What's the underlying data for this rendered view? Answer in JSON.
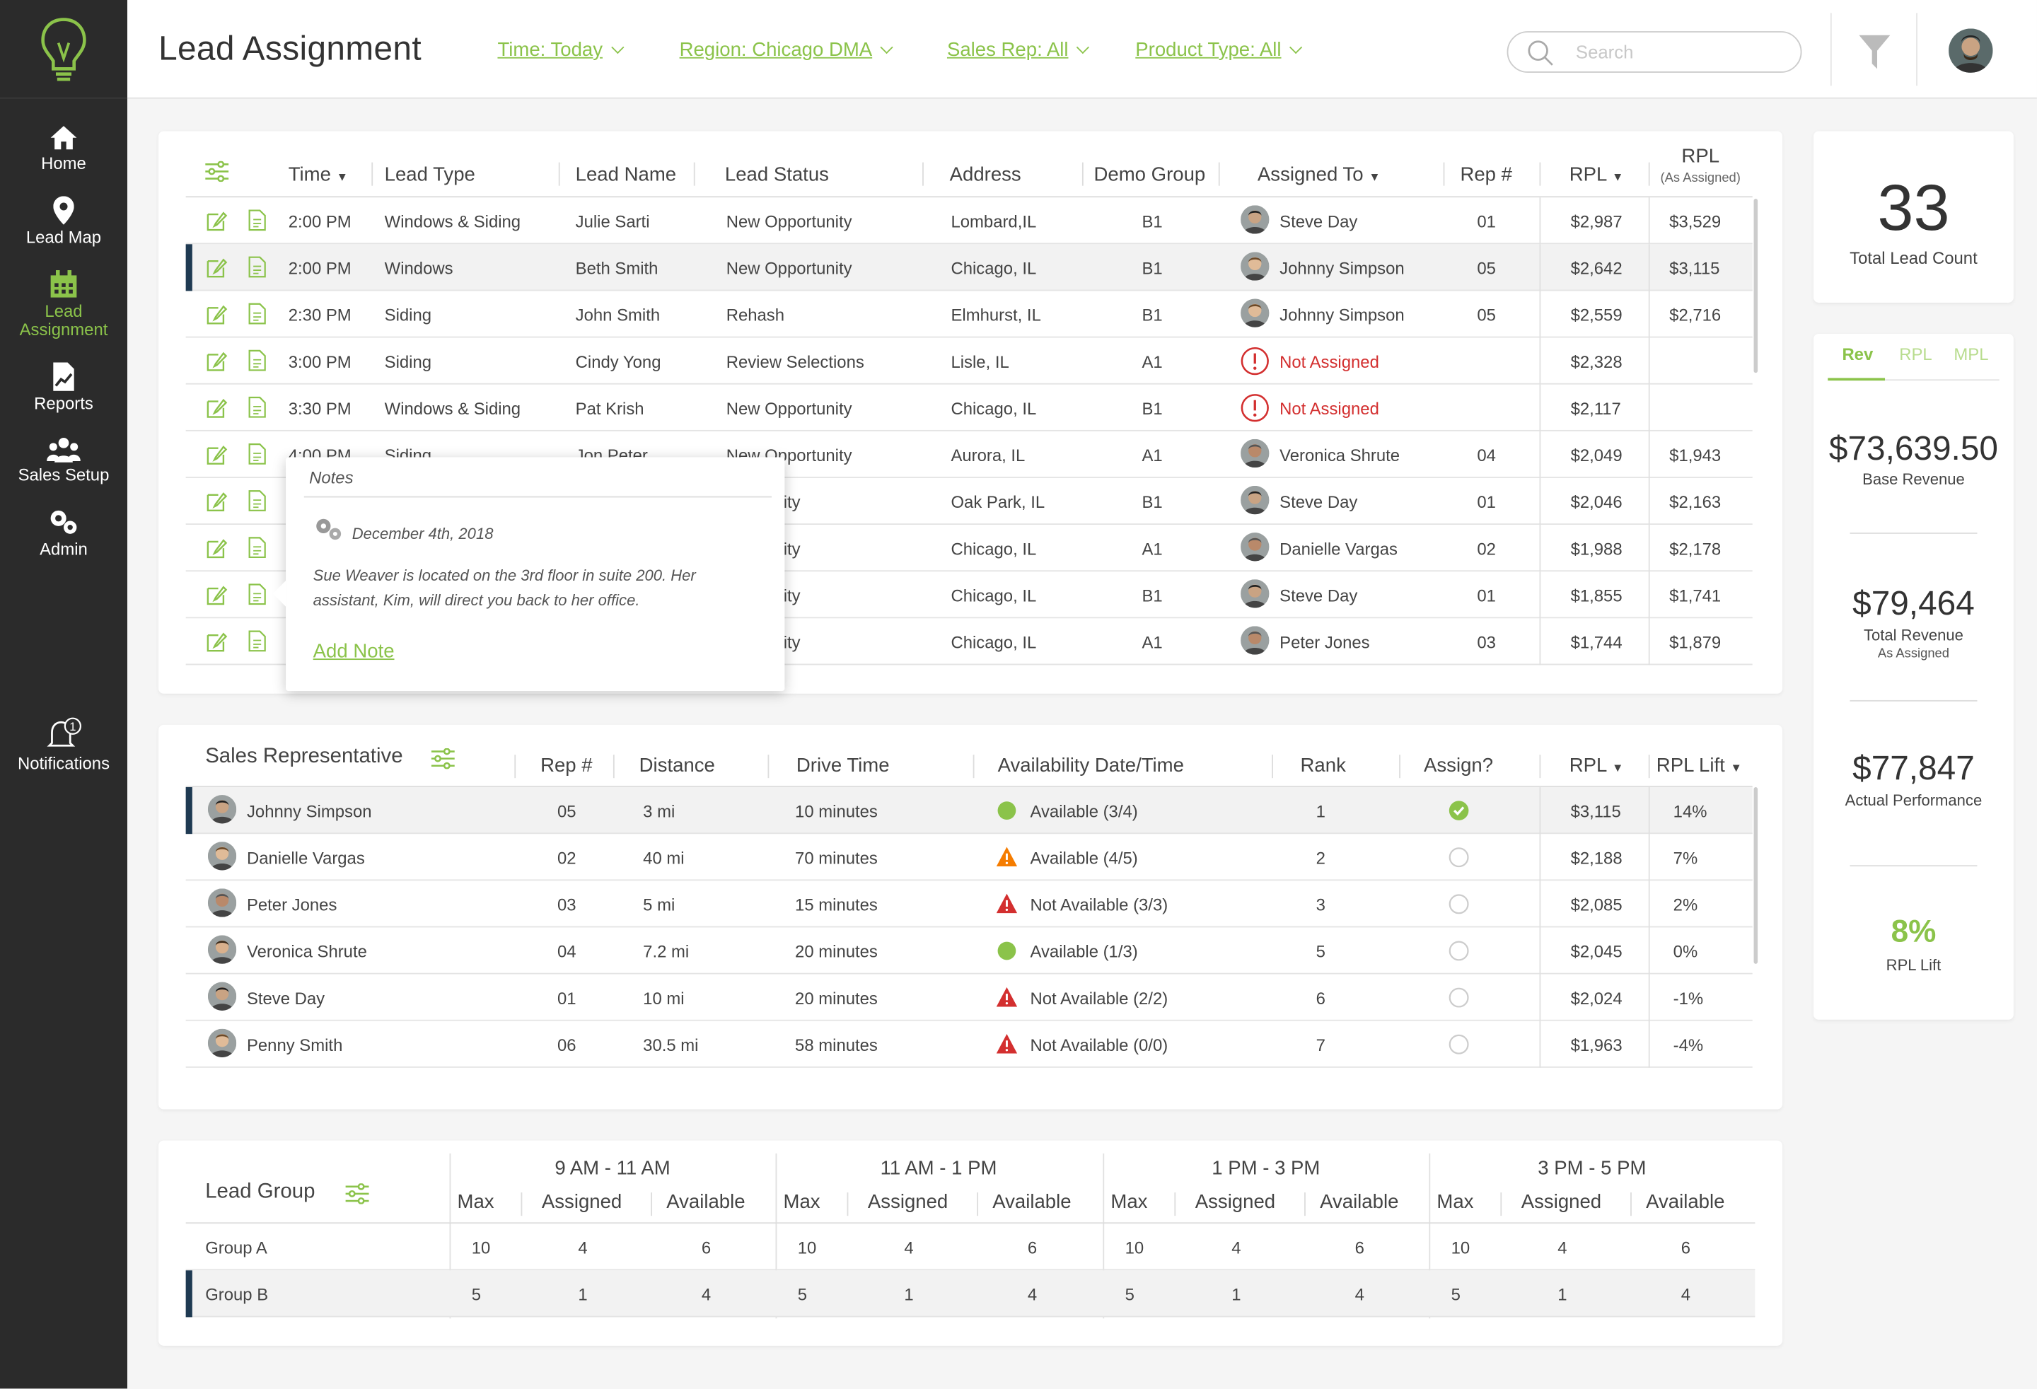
{
  "sidebar": {
    "items": [
      {
        "label": "Home",
        "icon": "home-icon"
      },
      {
        "label": "Lead Map",
        "icon": "map-pin-icon"
      },
      {
        "label": "Lead Assignment",
        "icon": "calendar-icon"
      },
      {
        "label": "Reports",
        "icon": "reports-icon"
      },
      {
        "label": "Sales Setup",
        "icon": "people-icon"
      },
      {
        "label": "Admin",
        "icon": "gears-icon"
      },
      {
        "label": "Notifications",
        "icon": "bell-icon",
        "badge": "1"
      }
    ],
    "active": "Lead Assignment"
  },
  "header": {
    "title": "Lead Assignment",
    "filters": [
      "Time: Today",
      "Region: Chicago DMA",
      "Sales Rep: All",
      "Product Type: All"
    ],
    "search_placeholder": "Search"
  },
  "leads": {
    "columns": [
      "Time",
      "Lead Type",
      "Lead Name",
      "Lead Status",
      "Address",
      "Demo Group",
      "Assigned To",
      "Rep #",
      "RPL",
      "RPL",
      "(As Assigned)"
    ],
    "rows": [
      {
        "time": "2:00 PM",
        "type": "Windows & Siding",
        "name": "Julie Sarti",
        "status": "New Opportunity",
        "address": "Lombard,IL",
        "group": "B1",
        "assigned": "Steve Day",
        "rep": "01",
        "rpl": "$2,987",
        "rpl_as": "$3,529"
      },
      {
        "time": "2:00 PM",
        "type": "Windows",
        "name": "Beth Smith",
        "status": "New Opportunity",
        "address": "Chicago, IL",
        "group": "B1",
        "assigned": "Johnny Simpson",
        "rep": "05",
        "rpl": "$2,642",
        "rpl_as": "$3,115"
      },
      {
        "time": "2:30 PM",
        "type": "Siding",
        "name": "John Smith",
        "status": "Rehash",
        "address": "Elmhurst, IL",
        "group": "B1",
        "assigned": "Johnny Simpson",
        "rep": "05",
        "rpl": "$2,559",
        "rpl_as": "$2,716"
      },
      {
        "time": "3:00 PM",
        "type": "Siding",
        "name": "Cindy Yong",
        "status": "Review Selections",
        "address": "Lisle, IL",
        "group": "A1",
        "assigned": "Not Assigned",
        "rep": "",
        "rpl": "$2,328",
        "rpl_as": ""
      },
      {
        "time": "3:30 PM",
        "type": "Windows & Siding",
        "name": "Pat Krish",
        "status": "New Opportunity",
        "address": "Chicago, IL",
        "group": "B1",
        "assigned": "Not Assigned",
        "rep": "",
        "rpl": "$2,117",
        "rpl_as": ""
      },
      {
        "time": "4:00 PM",
        "type": "Siding",
        "name": "Jon Peter",
        "status": "New Opportunity",
        "address": "Aurora, IL",
        "group": "A1",
        "assigned": "Veronica Shrute",
        "rep": "04",
        "rpl": "$2,049",
        "rpl_as": "$1,943"
      },
      {
        "time": "",
        "type": "",
        "name": "",
        "status": "pportunity",
        "address": "Oak Park, IL",
        "group": "B1",
        "assigned": "Steve Day",
        "rep": "01",
        "rpl": "$2,046",
        "rpl_as": "$2,163"
      },
      {
        "time": "",
        "type": "",
        "name": "",
        "status": "pportunity",
        "address": "Chicago, IL",
        "group": "A1",
        "assigned": "Danielle Vargas",
        "rep": "02",
        "rpl": "$1,988",
        "rpl_as": "$2,178"
      },
      {
        "time": "",
        "type": "",
        "name": "",
        "status": "pportunity",
        "address": "Chicago, IL",
        "group": "B1",
        "assigned": "Steve Day",
        "rep": "01",
        "rpl": "$1,855",
        "rpl_as": "$1,741"
      },
      {
        "time": "",
        "type": "",
        "name": "",
        "status": "pportunity",
        "address": "Chicago, IL",
        "group": "A1",
        "assigned": "Peter Jones",
        "rep": "03",
        "rpl": "$1,744",
        "rpl_as": "$1,879"
      }
    ]
  },
  "notes": {
    "title": "Notes",
    "date": "December 4th, 2018",
    "text": "Sue Weaver is located on the 3rd floor in suite 200. Her assistant, Kim, will direct you back to her office.",
    "add_label": "Add Note"
  },
  "reps": {
    "title": "Sales Representative",
    "columns": [
      "Rep #",
      "Distance",
      "Drive Time",
      "Availability Date/Time",
      "Rank",
      "Assign?",
      "RPL",
      "RPL Lift"
    ],
    "rows": [
      {
        "name": "Johnny Simpson",
        "rep": "05",
        "distance": "3 mi",
        "drive": "10 minutes",
        "avail_status": "green",
        "avail": "Available (3/4)",
        "rank": "1",
        "assigned": true,
        "rpl": "$3,115",
        "lift": "14%"
      },
      {
        "name": "Danielle Vargas",
        "rep": "02",
        "distance": "40 mi",
        "drive": "70 minutes",
        "avail_status": "orange",
        "avail": "Available (4/5)",
        "rank": "2",
        "assigned": false,
        "rpl": "$2,188",
        "lift": "7%"
      },
      {
        "name": "Peter Jones",
        "rep": "03",
        "distance": "5 mi",
        "drive": "15 minutes",
        "avail_status": "red",
        "avail": "Not Available (3/3)",
        "rank": "3",
        "assigned": false,
        "rpl": "$2,085",
        "lift": "2%"
      },
      {
        "name": "Veronica Shrute",
        "rep": "04",
        "distance": "7.2 mi",
        "drive": "20 minutes",
        "avail_status": "green",
        "avail": "Available (1/3)",
        "rank": "5",
        "assigned": false,
        "rpl": "$2,045",
        "lift": "0%"
      },
      {
        "name": "Steve Day",
        "rep": "01",
        "distance": "10 mi",
        "drive": "20 minutes",
        "avail_status": "red",
        "avail": "Not Available (2/2)",
        "rank": "6",
        "assigned": false,
        "rpl": "$2,024",
        "lift": "-1%"
      },
      {
        "name": "Penny Smith",
        "rep": "06",
        "distance": "30.5 mi",
        "drive": "58 minutes",
        "avail_status": "red",
        "avail": "Not Available (0/0)",
        "rank": "7",
        "assigned": false,
        "rpl": "$1,963",
        "lift": "-4%"
      }
    ]
  },
  "groups": {
    "title": "Lead Group",
    "slots": [
      "9 AM - 11 AM",
      "11 AM - 1 PM",
      "1 PM - 3 PM",
      "3 PM - 5 PM"
    ],
    "subcols": [
      "Max",
      "Assigned",
      "Available"
    ],
    "rows": [
      {
        "name": "Group A",
        "values": [
          "10",
          "4",
          "6",
          "10",
          "4",
          "6",
          "10",
          "4",
          "6",
          "10",
          "4",
          "6"
        ]
      },
      {
        "name": "Group B",
        "values": [
          "5",
          "1",
          "4",
          "5",
          "1",
          "4",
          "5",
          "1",
          "4",
          "5",
          "1",
          "4"
        ]
      }
    ]
  },
  "stats": {
    "total_count": "33",
    "total_label": "Total Lead Count",
    "tabs": [
      "Rev",
      "RPL",
      "MPL"
    ],
    "base_revenue": "$73,639.50",
    "base_revenue_label": "Base Revenue",
    "total_revenue": "$79,464",
    "total_revenue_label": "Total Revenue",
    "total_revenue_sub": "As Assigned",
    "actual": "$77,847",
    "actual_label": "Actual Performance",
    "lift": "8%",
    "lift_label": "RPL Lift"
  },
  "colors": {
    "accent": "#8bc34a",
    "sidebar": "#2b2b2b",
    "selected_marker": "#1f3a52",
    "error": "#d32f2f"
  }
}
